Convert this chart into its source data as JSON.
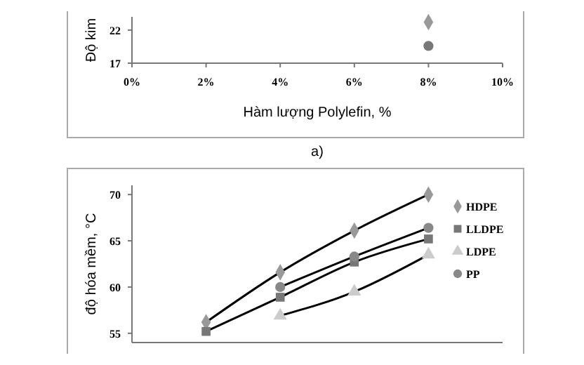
{
  "chart_data": [
    {
      "type": "scatter",
      "ylabel": "Độ kim",
      "xlabel": "Hàm lượng Polylefin, %",
      "annotations": [
        "a)"
      ],
      "xlim": [
        0,
        10
      ],
      "xticks": [
        {
          "value": 0,
          "label": "0%"
        },
        {
          "value": 2,
          "label": "2%"
        },
        {
          "value": 4,
          "label": "4%"
        },
        {
          "value": 6,
          "label": "6%"
        },
        {
          "value": 8,
          "label": "8%"
        },
        {
          "value": 10,
          "label": "10%"
        }
      ],
      "ylim": [
        17,
        24
      ],
      "yticks": [
        17,
        22
      ],
      "series": [
        {
          "color": "#999999",
          "marker": "diamond",
          "x": [
            8
          ],
          "values": [
            23.2
          ]
        },
        {
          "color": "#777777",
          "marker": "circle",
          "x": [
            8
          ],
          "values": [
            19.6
          ]
        }
      ]
    },
    {
      "type": "scatter",
      "ylabel": "độ hóa mềm, °C",
      "xlim": [
        0,
        10
      ],
      "tick_labels": "y",
      "ylim": [
        54,
        71
      ],
      "yticks": [
        55,
        60,
        65,
        70
      ],
      "legend": "right",
      "series": [
        {
          "type": "line",
          "color": "#000000",
          "marker": "none",
          "x": [
            2,
            4,
            6,
            8
          ],
          "values": [
            56.2,
            61.6,
            66.1,
            70.0
          ]
        },
        {
          "type": "line",
          "color": "#000000",
          "marker": "none",
          "x": [
            2,
            4,
            6,
            8
          ],
          "values": [
            55.2,
            58.9,
            62.7,
            65.2
          ]
        },
        {
          "type": "line",
          "color": "#000000",
          "marker": "none",
          "x": [
            4,
            6,
            8
          ],
          "values": [
            56.9,
            59.5,
            63.5
          ]
        },
        {
          "type": "line",
          "color": "#000000",
          "marker": "none",
          "x": [
            4,
            6,
            8
          ],
          "values": [
            60.0,
            63.3,
            66.4
          ]
        },
        {
          "name": "HDPE",
          "color": "#999999",
          "marker": "diamond",
          "x": [
            2,
            4,
            6,
            8
          ],
          "values": [
            56.2,
            61.6,
            66.1,
            70.0
          ]
        },
        {
          "name": "LLDPE",
          "color": "#777777",
          "marker": "square",
          "x": [
            2,
            4,
            6,
            8
          ],
          "values": [
            55.2,
            58.9,
            62.7,
            65.2
          ]
        },
        {
          "name": "LDPE",
          "color": "#cccccc",
          "marker": "triangle",
          "x": [
            4,
            6,
            8
          ],
          "values": [
            56.9,
            59.5,
            63.5
          ]
        },
        {
          "name": "PP",
          "color": "#888888",
          "marker": "circle",
          "x": [
            4,
            6,
            8
          ],
          "values": [
            60.0,
            63.3,
            66.4
          ]
        }
      ]
    }
  ]
}
